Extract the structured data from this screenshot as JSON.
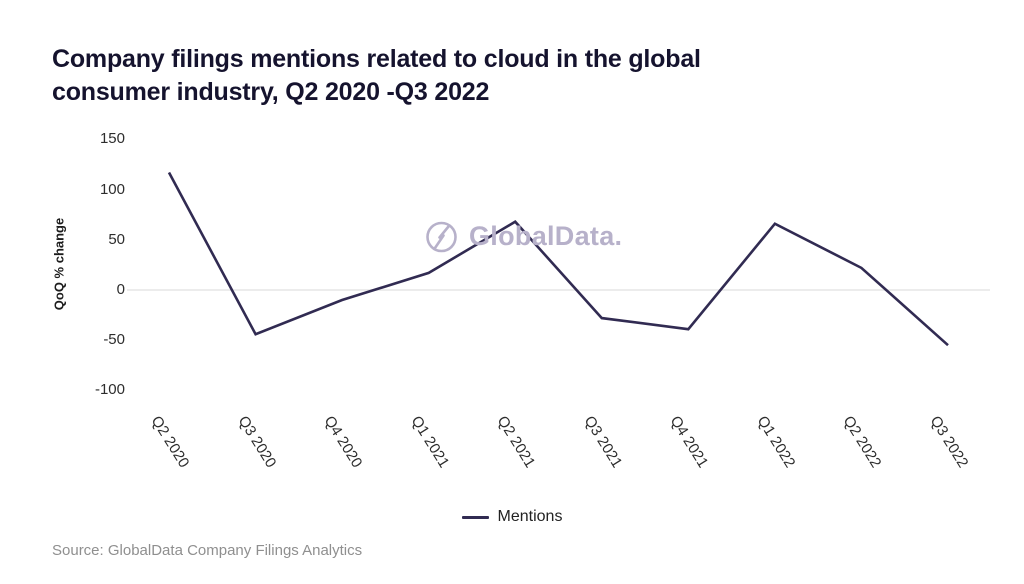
{
  "title": {
    "lines": [
      "Company filings mentions related to cloud in the global",
      "consumer industry, Q2 2020 -Q3 2022"
    ]
  },
  "watermark": {
    "text": "GlobalData.",
    "logo_icon": "globaldata-circle-logo",
    "color": "#b7b1ca"
  },
  "legend": {
    "items": [
      {
        "label": "Mentions",
        "color": "#312b52"
      }
    ]
  },
  "source": "Source: GlobalData Company Filings Analytics",
  "colors": {
    "line": "#312b52",
    "zero_gridline": "#e5e5e5",
    "tick_text": "#2d2d2d",
    "title_text": "#15132e",
    "source_text": "#8f8f8f",
    "background": "#ffffff"
  },
  "chart_data": {
    "type": "line",
    "title": "Company filings mentions related to cloud in the global consumer industry, Q2 2020 -Q3 2022",
    "categories": [
      "Q2 2020",
      "Q3 2020",
      "Q4 2020",
      "Q1 2021",
      "Q2 2021",
      "Q3 2021",
      "Q4 2021",
      "Q1 2022",
      "Q2 2022",
      "Q3 2022"
    ],
    "series": [
      {
        "name": "Mentions",
        "color": "#312b52",
        "values": [
          117,
          -44,
          -10,
          17,
          68,
          -28,
          -39,
          66,
          22,
          -55
        ]
      }
    ],
    "xlabel": "",
    "ylabel": "QoQ % change",
    "ylim": [
      -100,
      150
    ],
    "yticks": [
      150,
      100,
      50,
      0,
      -50,
      -100
    ],
    "grid": "zero-line-only",
    "legend_position": "bottom-center"
  }
}
